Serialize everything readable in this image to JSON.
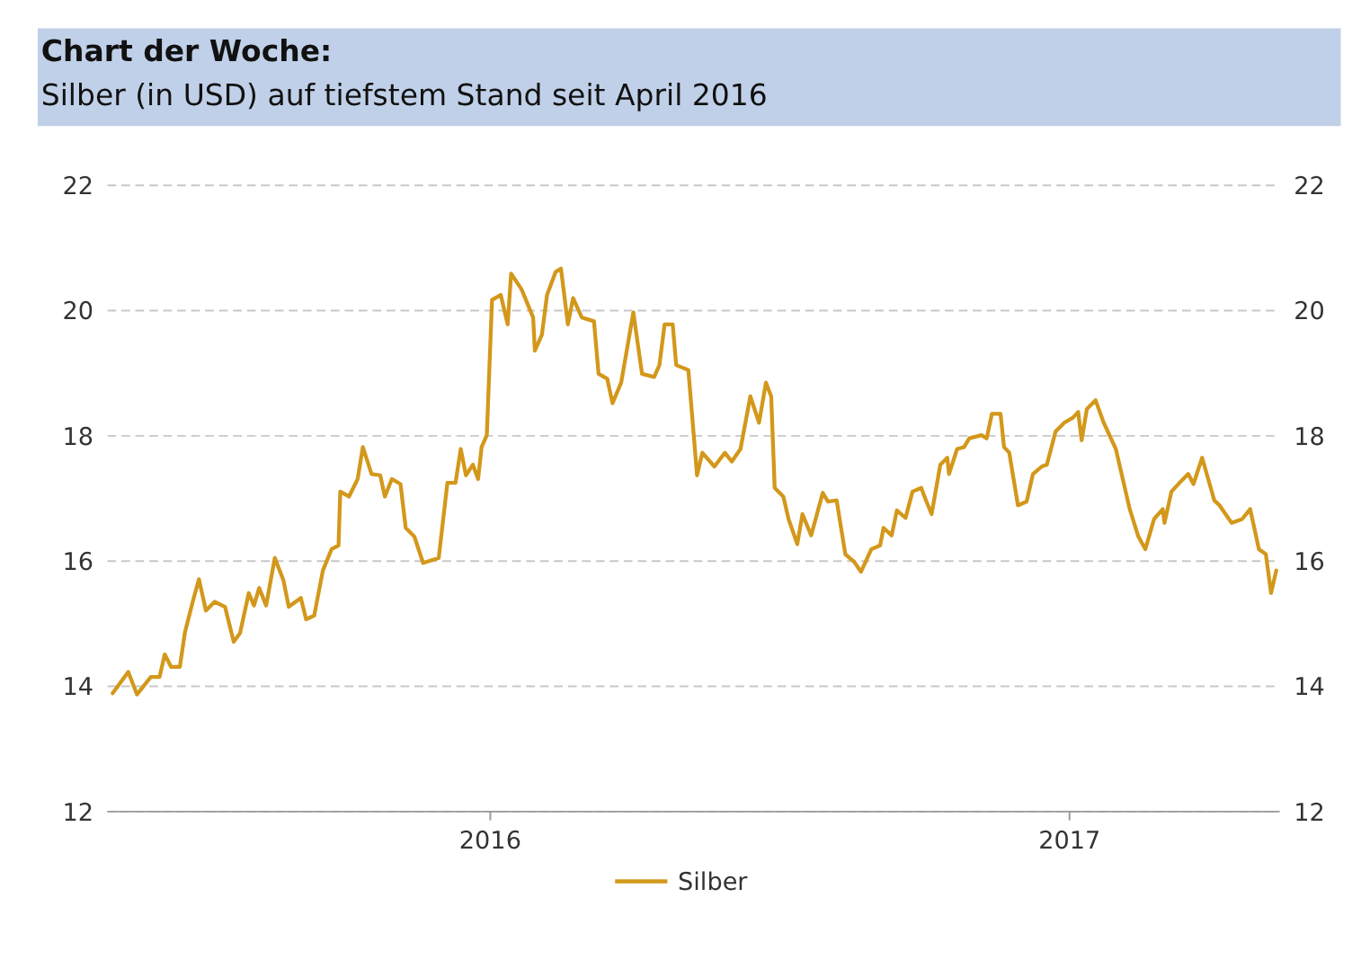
{
  "chart_data": {
    "type": "line",
    "title": "Chart der Woche:",
    "subtitle": "Silber (in USD) auf tiefstem Stand seit April 2016",
    "xlim": [
      2015.339,
      2017.363
    ],
    "xticks": [
      2016,
      2017
    ],
    "ylim": [
      12,
      22
    ],
    "yticks": [
      12,
      14,
      16,
      18,
      20,
      22
    ],
    "y2lim": [
      12,
      22
    ],
    "y2ticks": [
      12,
      14,
      16,
      18,
      20,
      22
    ],
    "grid": "y",
    "legend": "bottom",
    "line_style": "solid",
    "marker": "none",
    "series": [
      {
        "name": "Silber",
        "color": "#d3981b",
        "x": [
          2015.348,
          2015.375,
          2015.39,
          2015.414,
          2015.429,
          2015.438,
          2015.449,
          2015.464,
          2015.473,
          2015.488,
          2015.497,
          2015.509,
          2015.524,
          2015.542,
          2015.557,
          2015.568,
          2015.583,
          2015.592,
          2015.601,
          2015.613,
          2015.628,
          2015.643,
          2015.652,
          2015.673,
          2015.682,
          2015.696,
          2015.711,
          2015.726,
          2015.738,
          2015.741,
          2015.756,
          2015.771,
          2015.78,
          2015.795,
          2015.81,
          2015.818,
          2015.83,
          2015.845,
          2015.854,
          2015.869,
          2015.884,
          2015.911,
          2015.926,
          2015.94,
          2015.949,
          2015.958,
          2015.97,
          2015.979,
          2015.985,
          2015.994,
          2016.003,
          2016.018,
          2016.03,
          2016.036,
          2016.054,
          2016.074,
          2016.077,
          2016.089,
          2016.098,
          2016.113,
          2016.122,
          2016.134,
          2016.143,
          2016.158,
          2016.179,
          2016.187,
          2016.202,
          2016.211,
          2016.226,
          2016.247,
          2016.262,
          2016.283,
          2016.292,
          2016.301,
          2016.315,
          2016.321,
          2016.342,
          2016.357,
          2016.366,
          2016.387,
          2016.405,
          2016.417,
          2016.432,
          2016.449,
          2016.464,
          2016.476,
          2016.485,
          2016.491,
          2016.506,
          2016.515,
          2016.53,
          2016.539,
          2016.554,
          2016.574,
          2016.583,
          2016.598,
          2016.613,
          2016.628,
          2016.64,
          2016.658,
          2016.673,
          2016.679,
          2016.693,
          2016.702,
          2016.717,
          2016.729,
          2016.744,
          2016.753,
          2016.762,
          2016.777,
          2016.789,
          2016.792,
          2016.806,
          2016.818,
          2016.827,
          2016.848,
          2016.857,
          2016.866,
          2016.881,
          2016.887,
          2016.896,
          2016.911,
          2016.926,
          2016.937,
          2016.952,
          2016.961,
          2016.976,
          2016.991,
          2017.006,
          2017.015,
          2017.021,
          2017.03,
          2017.045,
          2017.059,
          2017.08,
          2017.104,
          2017.119,
          2017.131,
          2017.146,
          2017.161,
          2017.164,
          2017.176,
          2017.19,
          2017.205,
          2017.214,
          2017.229,
          2017.25,
          2017.259,
          2017.28,
          2017.298,
          2017.312,
          2017.327,
          2017.339,
          2017.348,
          2017.357
        ],
        "values": [
          13.89,
          14.23,
          13.87,
          14.15,
          14.15,
          14.51,
          14.31,
          14.31,
          14.87,
          15.41,
          15.71,
          15.21,
          15.35,
          15.27,
          14.71,
          14.85,
          15.49,
          15.29,
          15.57,
          15.29,
          16.05,
          15.69,
          15.27,
          15.41,
          15.07,
          15.13,
          15.85,
          16.19,
          16.25,
          17.11,
          17.03,
          17.31,
          17.82,
          17.39,
          17.37,
          17.03,
          17.31,
          17.23,
          16.53,
          16.39,
          15.97,
          16.05,
          17.25,
          17.25,
          17.79,
          17.37,
          17.54,
          17.31,
          17.82,
          18.01,
          20.17,
          20.25,
          19.78,
          20.59,
          20.34,
          19.89,
          19.36,
          19.61,
          20.25,
          20.62,
          20.67,
          19.78,
          20.2,
          19.89,
          19.83,
          18.99,
          18.91,
          18.52,
          18.85,
          19.97,
          18.99,
          18.94,
          19.13,
          19.78,
          19.78,
          19.13,
          19.05,
          17.37,
          17.73,
          17.51,
          17.73,
          17.59,
          17.79,
          18.63,
          18.21,
          18.85,
          18.63,
          17.17,
          17.03,
          16.67,
          16.27,
          16.75,
          16.41,
          17.09,
          16.95,
          16.97,
          16.11,
          15.99,
          15.83,
          16.19,
          16.25,
          16.53,
          16.41,
          16.81,
          16.69,
          17.11,
          17.17,
          16.95,
          16.75,
          17.54,
          17.65,
          17.39,
          17.79,
          17.82,
          17.96,
          18.01,
          17.96,
          18.35,
          18.35,
          17.82,
          17.73,
          16.89,
          16.95,
          17.39,
          17.51,
          17.54,
          18.07,
          18.21,
          18.29,
          18.38,
          17.93,
          18.43,
          18.57,
          18.21,
          17.79,
          16.83,
          16.39,
          16.19,
          16.67,
          16.83,
          16.61,
          17.11,
          17.25,
          17.39,
          17.23,
          17.65,
          16.97,
          16.89,
          16.61,
          16.67,
          16.83,
          16.19,
          16.11,
          15.49,
          15.85
        ]
      }
    ]
  }
}
